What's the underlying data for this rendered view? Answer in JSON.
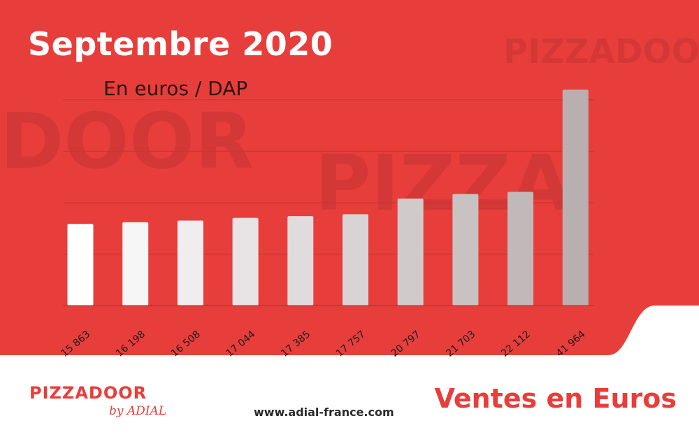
{
  "colors": {
    "background_red": "#e83e3b",
    "footer_white": "#ffffff",
    "accent_red": "#e83e3b"
  },
  "header": {
    "title": "Septembre 2020",
    "subtitle": "En euros / DAP"
  },
  "footer": {
    "logo_text": "PIZZADOOR",
    "logo_sub": "by ADIAL",
    "url": "www.adial-france.com",
    "caption": "Ventes en Euros"
  },
  "chart_data": {
    "type": "bar",
    "title": "Septembre 2020",
    "subtitle": "En euros / DAP",
    "categories": [
      "15 863",
      "16 198",
      "16 508",
      "17 044",
      "17 385",
      "17 757",
      "20 797",
      "21 703",
      "22 112",
      "41 964"
    ],
    "values": [
      15863,
      16198,
      16508,
      17044,
      17385,
      17757,
      20797,
      21703,
      22112,
      41964
    ],
    "ylim": [
      0,
      42000
    ],
    "grid": true,
    "legend": "none"
  }
}
